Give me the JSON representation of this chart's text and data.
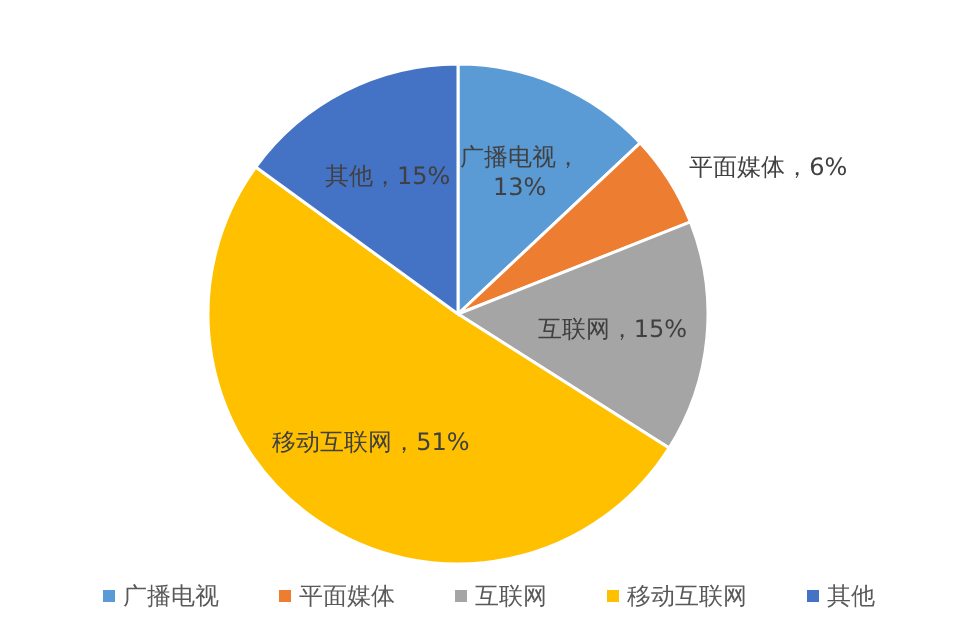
{
  "chart_data": {
    "type": "pie",
    "categories": [
      "广播电视",
      "平面媒体",
      "互联网",
      "移动互联网",
      "其他"
    ],
    "values": [
      13,
      6,
      15,
      51,
      15
    ],
    "colors": [
      "#5b9bd5",
      "#ed7d31",
      "#a5a5a5",
      "#ffc000",
      "#4472c4"
    ],
    "value_labels": [
      "广播电视，13%",
      "平面媒体，6%",
      "互联网，15%",
      "移动互联网，51%",
      "其他，15%"
    ],
    "legend": "bottom"
  }
}
